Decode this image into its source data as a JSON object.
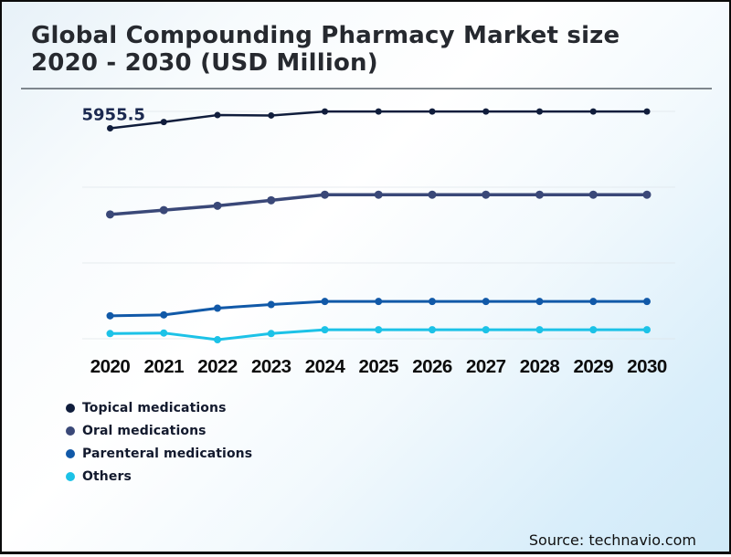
{
  "title_lines": [
    "Global Compounding Pharmacy Market size",
    "2020 - 2030 (USD Million)"
  ],
  "source_label": "Source: technavio.com",
  "chart_data": {
    "type": "line",
    "title": "Global Compounding Pharmacy Market size 2020 - 2030 (USD Million)",
    "unit": "USD Million",
    "categories": [
      "2020",
      "2021",
      "2022",
      "2023",
      "2024",
      "2025",
      "2026",
      "2027",
      "2028",
      "2029",
      "2030"
    ],
    "series": [
      {
        "name": "Topical medications",
        "color": "#101d3c",
        "values": [
          5955.5,
          6130,
          6320,
          6310,
          6420,
          6420,
          6420,
          6420,
          6420,
          6420,
          6420
        ]
      },
      {
        "name": "Oral medications",
        "color": "#3a4878",
        "values": [
          3580,
          3700,
          3820,
          3970,
          4125,
          4125,
          4125,
          4125,
          4125,
          4125,
          4125
        ]
      },
      {
        "name": "Parenteral medications",
        "color": "#1159a8",
        "values": [
          785,
          810,
          995,
          1095,
          1180,
          1180,
          1180,
          1180,
          1180,
          1180,
          1180
        ]
      },
      {
        "name": "Others",
        "color": "#1cc2e7",
        "values": [
          295,
          310,
          125,
          295,
          400,
          400,
          400,
          400,
          400,
          400,
          400
        ]
      }
    ],
    "annotation": {
      "text": "5955.5",
      "series_index": 0,
      "point_index": 0
    },
    "ylim": [
      0,
      6800
    ],
    "xlabel": "",
    "ylabel": "",
    "grid": "horizontal",
    "legend_position": "bottom-left"
  }
}
